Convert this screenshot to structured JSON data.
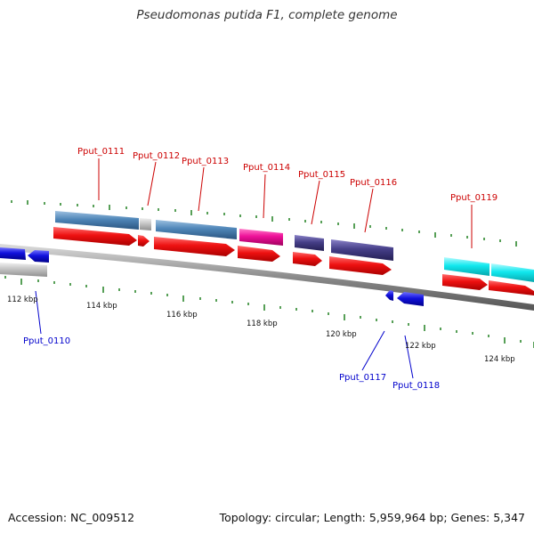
{
  "title": "Pseudomonas putida F1, complete genome",
  "footer": {
    "accession": "Accession: NC_009512",
    "stats": "Topology: circular; Length: 5,959,964 bp; Genes: 5,347"
  },
  "colors": {
    "forward_label": "#cc0000",
    "reverse_label": "#0000cc",
    "cds": "#ee1111",
    "reverse_cds": "#1111dd",
    "tick": "#117711",
    "backbone": "#888888",
    "steelblue": "#4f86b8",
    "magenta": "#ee1199",
    "darkslate": "#463f88",
    "cyan": "#11e8ee",
    "grey": "#c4c4c4"
  },
  "kbp_labels": [
    "112 kbp",
    "114 kbp",
    "116 kbp",
    "118 kbp",
    "120 kbp",
    "122 kbp",
    "124 kbp"
  ],
  "gene_labels_forward": [
    "Pput_0111",
    "Pput_0112",
    "Pput_0113",
    "Pput_0114",
    "Pput_0115",
    "Pput_0116",
    "Pput_0119"
  ],
  "gene_labels_reverse": [
    "Pput_0110",
    "Pput_0117",
    "Pput_0118"
  ]
}
